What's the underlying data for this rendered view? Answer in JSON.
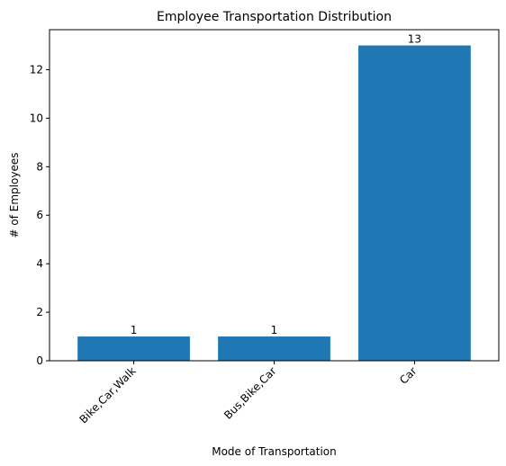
{
  "chart_data": {
    "type": "bar",
    "title": "Employee Transportation Distribution",
    "xlabel": "Mode of Transportation",
    "ylabel": "# of Employees",
    "categories": [
      "Bike,Car,Walk",
      "Bus,Bike,Car",
      "Car"
    ],
    "values": [
      1,
      1,
      13
    ],
    "data_labels": [
      "1",
      "1",
      "13"
    ],
    "ylim": [
      0,
      13.65
    ],
    "yticks": [
      0,
      2,
      4,
      6,
      8,
      10,
      12
    ],
    "grid": false,
    "legend": "none",
    "bar_color": "#1f77b4",
    "x_tick_rotation": 45
  }
}
